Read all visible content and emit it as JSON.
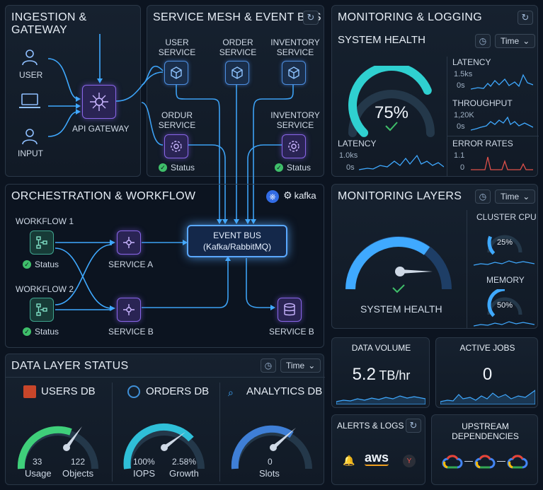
{
  "ingestion": {
    "title": "INGESTION & GATEWAY",
    "user": "USER",
    "input": "INPUT",
    "gateway": "API GATEWAY"
  },
  "mesh": {
    "title": "SERVICE MESH & EVENT BUS",
    "user_service": [
      "USER",
      "SERVICE"
    ],
    "order_service": [
      "ORDER",
      "SERVICE"
    ],
    "inventory_service": [
      "INVENTORY",
      "SERVICE"
    ],
    "ordur_service": [
      "ORDUR",
      "SERVICE"
    ],
    "inventory_service2": [
      "INVENTORY",
      "SERVICE"
    ],
    "status": "Status"
  },
  "orchestration": {
    "title": "ORCHESTRATION & WORKFLOW",
    "workflow1": "WORKFLOW 1",
    "workflow2": "WORKFLOW 2",
    "status": "Status",
    "service_a": "SERVICE A",
    "service_b": "SERVICE B",
    "service_b2": "SERVICE B",
    "event_bus": "EVENT BUS",
    "event_bus_sub": "(Kafka/RabbitMQ)",
    "kafka": "kafka"
  },
  "monitoring": {
    "title": "MONITORING & LOGGING",
    "system_health": "SYSTEM HEALTH",
    "time": "Time",
    "gauge_value": "75%",
    "gauge_level": 0.75,
    "latency": {
      "label": "LATENCY",
      "max": "1.5ks",
      "min": "0s"
    },
    "throughput": {
      "label": "THROUGHPUT",
      "max": "1,20K",
      "min": "0s"
    },
    "latency2": {
      "label": "LATENCY",
      "max": "1.0ks",
      "min": "0s"
    },
    "error": {
      "label": "ERROR RATES",
      "max": "1.1",
      "min": "0"
    }
  },
  "layers": {
    "title": "MONITORING LAYERS",
    "time": "Time",
    "health_label": "SYSTEM HEALTH",
    "cluster_cpu": "CLUSTER CPU",
    "cpu_value": "25%",
    "cpu_level": 0.25,
    "memory": "MEMORY",
    "memory_value": "50%",
    "memory_level": 0.5
  },
  "datalayer": {
    "title": "DATA LAYER STATUS",
    "time": "Time",
    "users": {
      "name": "USERS DB",
      "a_val": "33",
      "a_lbl": "Usage",
      "b_val": "122",
      "b_lbl": "Objects"
    },
    "orders": {
      "name": "ORDERS DB",
      "a_val": "100%",
      "a_lbl": "IOPS",
      "b_val": "2.58%",
      "b_lbl": "Growth"
    },
    "analytics": {
      "name": "ANALYTICS DB",
      "a_val": "0",
      "a_lbl": "Slots"
    }
  },
  "volume": {
    "title": "DATA VOLUME",
    "value": "5.2",
    "unit": "TB/hr"
  },
  "jobs": {
    "title": "ACTIVE JOBS",
    "value": "0"
  },
  "alerts": {
    "title": "ALERTS & LOGS",
    "aws": "aws"
  },
  "upstream": {
    "title": "UPSTREAM DEPENDENCIES"
  },
  "colors": {
    "accent": "#3fa9ff",
    "teal": "#3ad6c4",
    "green": "#3fbf6a",
    "purple": "#8a66e8",
    "red": "#e0504a"
  }
}
